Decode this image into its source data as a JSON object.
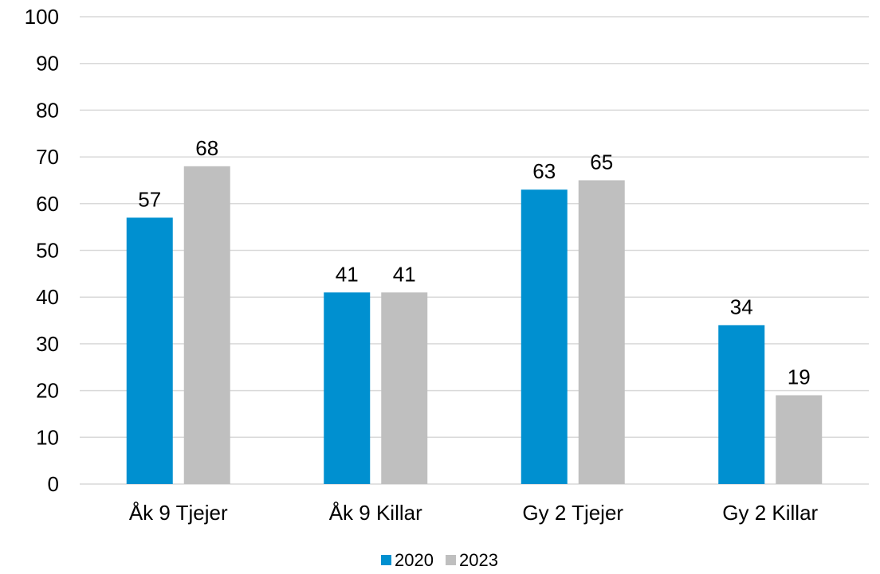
{
  "chart_data": {
    "type": "bar",
    "title": "",
    "xlabel": "",
    "ylabel": "",
    "categories": [
      "Åk 9 Tjejer",
      "Åk 9 Killar",
      "Gy 2 Tjejer",
      "Gy 2 Killar"
    ],
    "series": [
      {
        "name": "2020",
        "color": "#0090D0",
        "values": [
          57,
          41,
          63,
          34
        ],
        "shown": [
          57,
          41,
          63,
          34
        ]
      },
      {
        "name": "2023",
        "color": "#BFBFBF",
        "values": [
          68,
          41,
          65,
          19
        ],
        "shown": [
          68,
          41,
          65,
          19
        ]
      }
    ],
    "ylim": [
      0,
      100
    ],
    "yticks": [
      0,
      10,
      20,
      30,
      40,
      50,
      60,
      70,
      80,
      90,
      100
    ],
    "grid": true,
    "gridline_color": "#D9D9D9",
    "legend_position": "bottom"
  }
}
